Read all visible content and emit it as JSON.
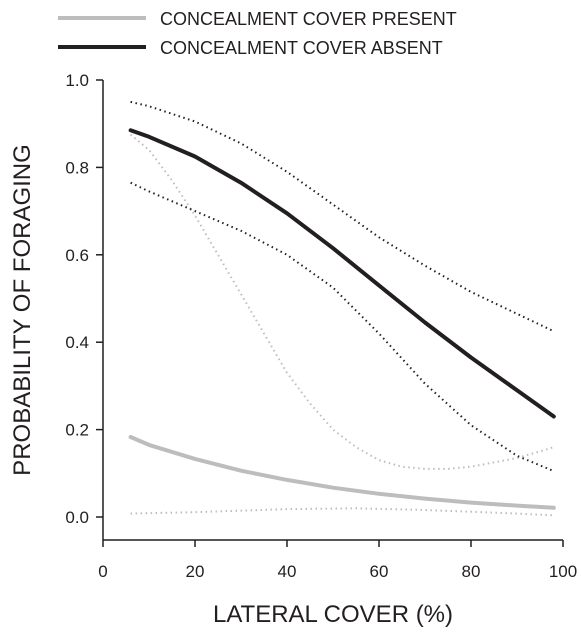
{
  "chart_data": {
    "type": "line",
    "title": "",
    "xlabel": "LATERAL COVER (%)",
    "ylabel": "PROBABILITY OF FORAGING",
    "xlim": [
      0,
      100
    ],
    "ylim": [
      0,
      1.0
    ],
    "x_ticks": [
      "0",
      "20",
      "40",
      "60",
      "80",
      "100"
    ],
    "y_ticks": [
      "0.0",
      "0.2",
      "0.4",
      "0.6",
      "0.8",
      "1.0"
    ],
    "grid": false,
    "legend_position": "top-left, above plot",
    "series": [
      {
        "name": "CONCEALMENT COVER PRESENT",
        "color": "#bdbdbd",
        "style": "solid",
        "x": [
          6,
          10,
          20,
          30,
          40,
          50,
          60,
          70,
          80,
          90,
          98
        ],
        "y": [
          0.183,
          0.165,
          0.133,
          0.106,
          0.085,
          0.067,
          0.053,
          0.042,
          0.033,
          0.026,
          0.021
        ]
      },
      {
        "name": "",
        "role": "present-upper-ci",
        "color": "#bdbdbd",
        "style": "dotted",
        "x": [
          6,
          10,
          15,
          20,
          25,
          30,
          35,
          40,
          45,
          50,
          55,
          60,
          65,
          70,
          75,
          80,
          85,
          90,
          95,
          98
        ],
        "y": [
          0.875,
          0.84,
          0.77,
          0.69,
          0.6,
          0.51,
          0.42,
          0.33,
          0.26,
          0.2,
          0.16,
          0.13,
          0.115,
          0.11,
          0.11,
          0.115,
          0.125,
          0.135,
          0.15,
          0.16
        ]
      },
      {
        "name": "",
        "role": "present-lower-ci",
        "color": "#bdbdbd",
        "style": "dotted",
        "x": [
          6,
          20,
          40,
          55,
          70,
          85,
          98
        ],
        "y": [
          0.008,
          0.011,
          0.018,
          0.02,
          0.016,
          0.01,
          0.004
        ]
      },
      {
        "name": "CONCEALMENT COVER ABSENT",
        "color": "#231f20",
        "style": "solid",
        "x": [
          6,
          10,
          20,
          30,
          40,
          50,
          60,
          70,
          80,
          90,
          98
        ],
        "y": [
          0.885,
          0.87,
          0.825,
          0.765,
          0.695,
          0.615,
          0.53,
          0.445,
          0.365,
          0.29,
          0.23
        ]
      },
      {
        "name": "",
        "role": "absent-upper-ci",
        "color": "#231f20",
        "style": "dotted",
        "x": [
          6,
          10,
          20,
          30,
          40,
          50,
          60,
          70,
          80,
          90,
          98
        ],
        "y": [
          0.95,
          0.94,
          0.905,
          0.855,
          0.79,
          0.715,
          0.64,
          0.575,
          0.515,
          0.465,
          0.425
        ]
      },
      {
        "name": "",
        "role": "absent-lower-ci",
        "color": "#231f20",
        "style": "dotted",
        "x": [
          6,
          10,
          20,
          30,
          40,
          50,
          60,
          70,
          80,
          90,
          98
        ],
        "y": [
          0.765,
          0.745,
          0.7,
          0.655,
          0.6,
          0.525,
          0.42,
          0.305,
          0.21,
          0.14,
          0.105
        ]
      }
    ]
  }
}
